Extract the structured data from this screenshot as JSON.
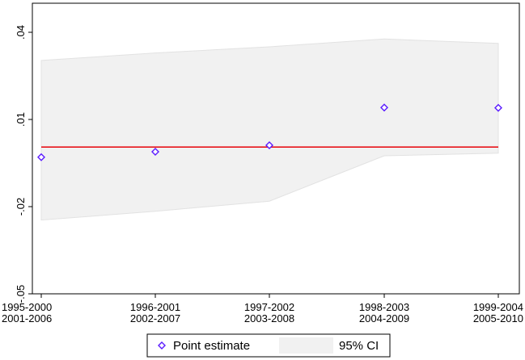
{
  "chart_data": {
    "type": "scatter",
    "title": "",
    "xlabel": "",
    "ylabel": "",
    "ylim": [
      -0.05,
      0.05
    ],
    "yticks": [
      {
        "value": 0.04,
        "label": ".04"
      },
      {
        "value": 0.01,
        "label": ".01"
      },
      {
        "value": -0.02,
        "label": "-.02"
      },
      {
        "value": -0.05,
        "label": "-.05"
      }
    ],
    "categories": [
      {
        "line1": "1995-2000",
        "line2": "2001-2006"
      },
      {
        "line1": "1996-2001",
        "line2": "2002-2007"
      },
      {
        "line1": "1997-2002",
        "line2": "2003-2008"
      },
      {
        "line1": "1998-2003",
        "line2": "2004-2009"
      },
      {
        "line1": "1999-2004",
        "line2": "2005-2010"
      }
    ],
    "point_estimate": [
      -0.003,
      -0.0011,
      0.0011,
      0.0141,
      0.014
    ],
    "ci_upper": [
      0.0303,
      0.0329,
      0.035,
      0.0377,
      0.0362
    ],
    "ci_lower": [
      -0.0246,
      -0.0216,
      -0.0181,
      -0.0025,
      -0.0016
    ],
    "reference_line": 0.0005,
    "grid": false,
    "legend_position": "bottom",
    "legend": [
      {
        "label": "Point estimate",
        "marker": "diamond",
        "color": "#5a1aff"
      },
      {
        "label": "95% CI",
        "marker": "area",
        "color": "#f1f1f1"
      }
    ],
    "colors": {
      "point": "#5a1aff",
      "ci_fill": "#f1f1f1",
      "ci_edge": "#e2e2e2",
      "reference": "#e8141a"
    }
  }
}
